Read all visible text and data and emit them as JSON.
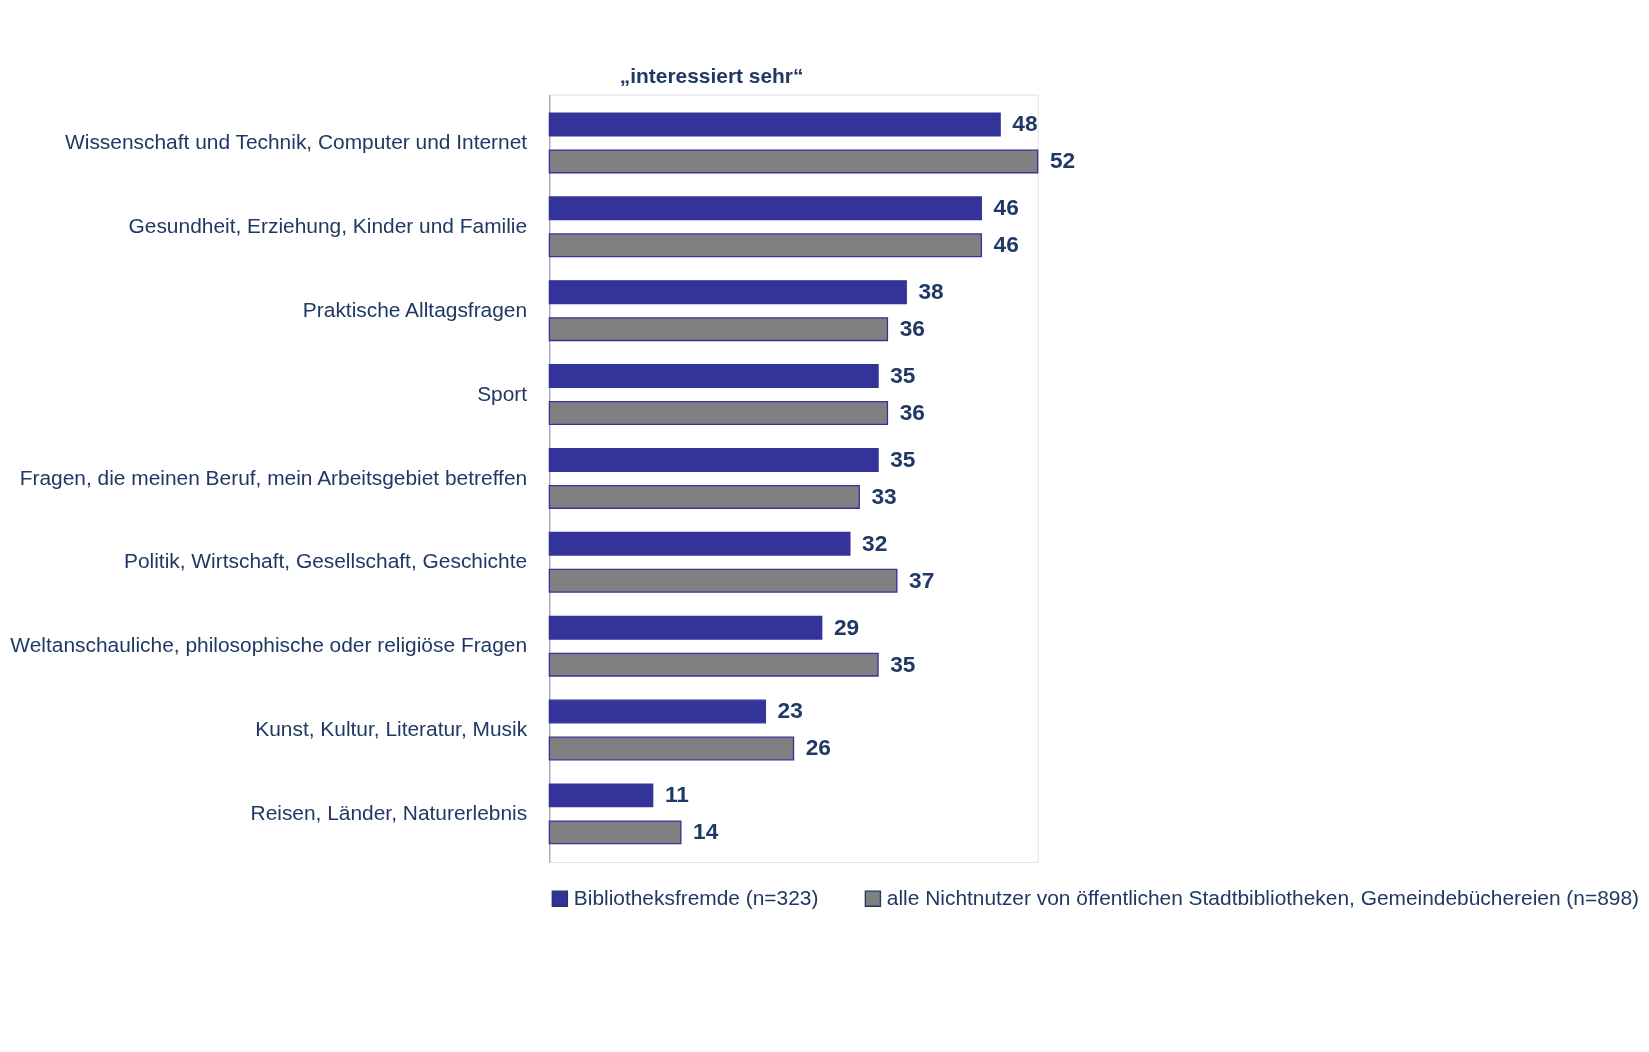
{
  "chart_data": {
    "type": "bar",
    "orientation": "horizontal",
    "title": "„interessiert sehr“",
    "categories": [
      "Wissenschaft und Technik, Computer und Internet",
      "Gesundheit,  Erziehung, Kinder und Familie",
      "Praktische Alltagsfragen",
      "Sport",
      "Fragen, die meinen Beruf, mein Arbeitsgebiet betreffen",
      "Politik, Wirtschaft, Gesellschaft, Geschichte",
      "Weltanschauliche, philosophische oder religiöse Fragen",
      "Kunst, Kultur, Literatur, Musik",
      "Reisen, Länder, Naturerlebnis"
    ],
    "series": [
      {
        "name": "Bibliotheksfremde (n=323)",
        "color": "#333399",
        "values": [
          48,
          46,
          38,
          35,
          35,
          32,
          29,
          23,
          11
        ]
      },
      {
        "name": "alle Nichtnutzer von öffentlichen Stadtbibliotheken, Gemeindebüchereien (n=898)",
        "color": "#808080",
        "values": [
          52,
          46,
          36,
          36,
          33,
          37,
          35,
          26,
          14
        ]
      }
    ],
    "data_labels": true,
    "legend": "bottom",
    "grid": false
  }
}
